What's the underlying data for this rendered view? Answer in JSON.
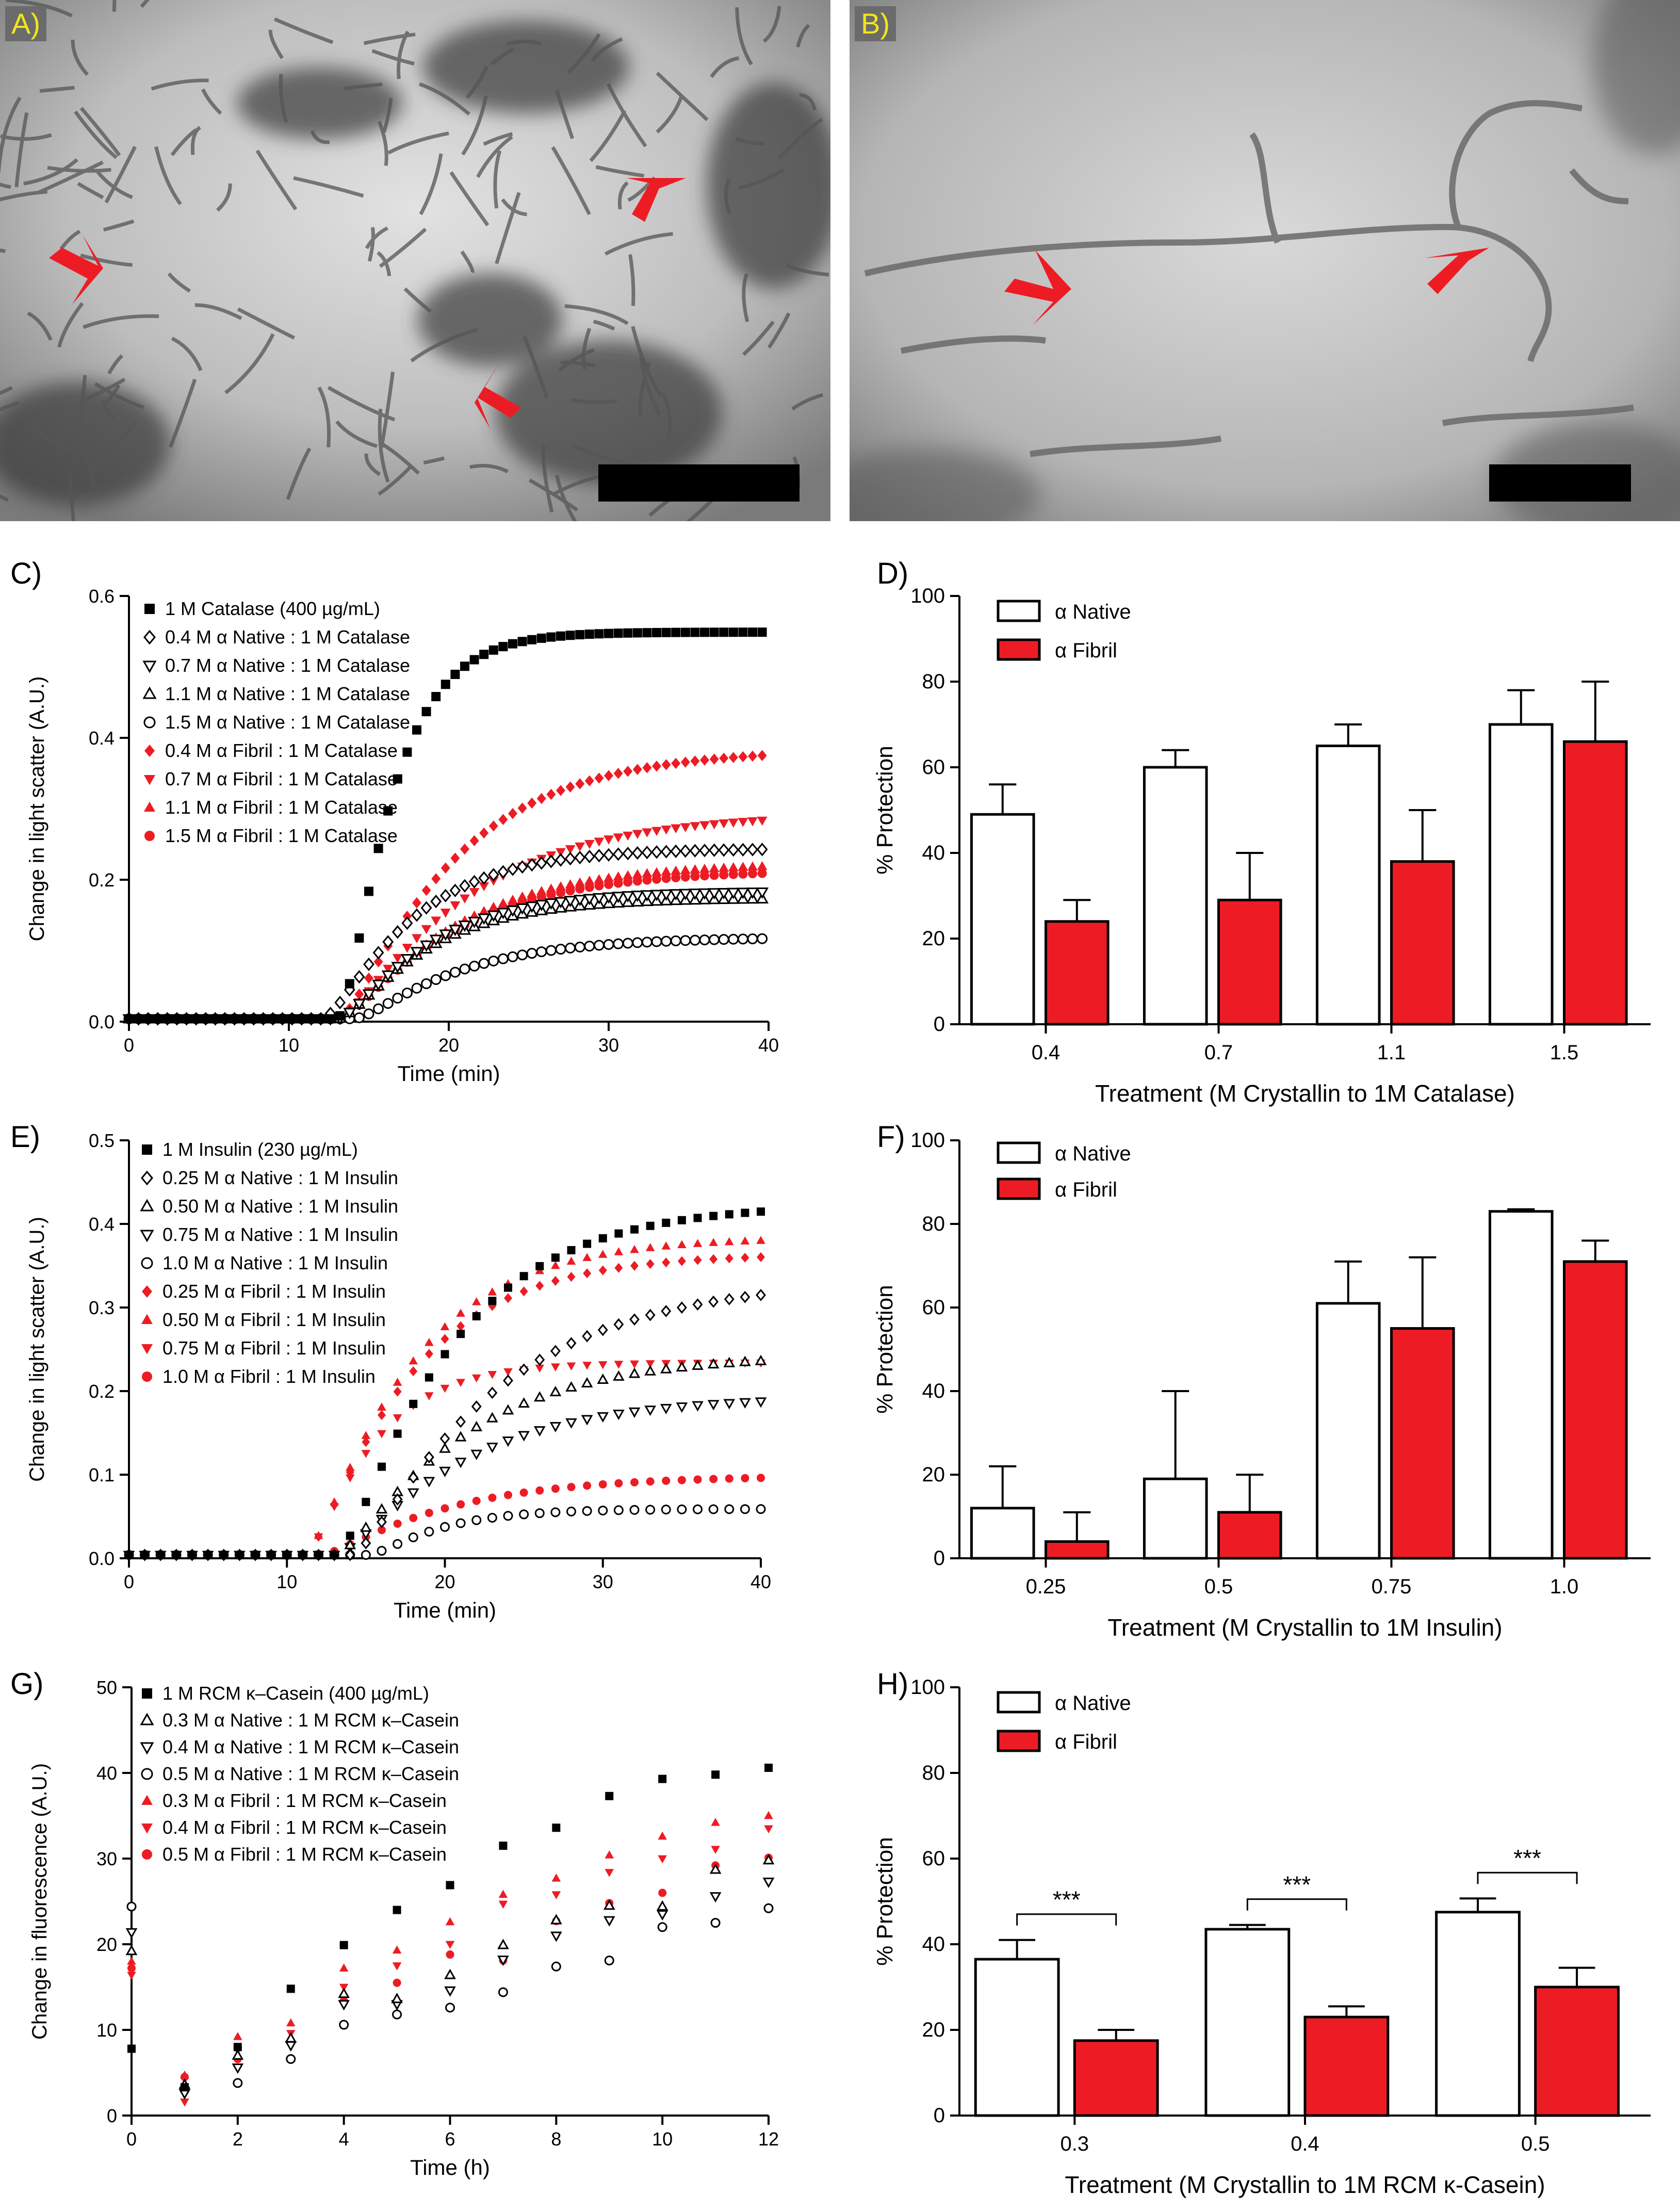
{
  "colors": {
    "red": "#ed1c24",
    "black": "#000000",
    "tem_background": "#c8c8c8"
  },
  "micrographs": [
    {
      "tag": "A)",
      "description_icon": "tem-micrograph-icon",
      "arrow_color": "#ed1c24"
    },
    {
      "tag": "B)",
      "description_icon": "tem-micrograph-icon",
      "arrow_color": "#ed1c24"
    }
  ],
  "chart_data": [
    {
      "id": "C",
      "letter": "C)",
      "type": "scatter",
      "xlabel": "Time (min)",
      "ylabel": "Change in light scatter (A.U.)",
      "xlim": [
        0,
        40
      ],
      "ylim": [
        0,
        0.6
      ],
      "xticks": [
        "0",
        "10",
        "20",
        "30",
        "40"
      ],
      "yticks": [
        "0.0",
        "0.2",
        "0.4",
        "0.6"
      ],
      "legend_position": "top-left",
      "series": [
        {
          "name": "1 M Catalase (400 µg/mL)",
          "marker": "square",
          "color": "#000000",
          "fill": true,
          "onset": 13,
          "plateau": 0.545,
          "rate": 0.22
        },
        {
          "name": "0.4 M α Native : 1 M Catalase",
          "marker": "diamond",
          "color": "#000000",
          "fill": false,
          "onset": 12,
          "plateau": 0.24,
          "rate": 0.12
        },
        {
          "name": "0.7 M α Native : 1 M Catalase",
          "marker": "triangle-down",
          "color": "#000000",
          "fill": false,
          "onset": 13,
          "plateau": 0.18,
          "rate": 0.12
        },
        {
          "name": "1.1 M α Native : 1 M Catalase",
          "marker": "triangle-up",
          "color": "#000000",
          "fill": false,
          "onset": 13,
          "plateau": 0.17,
          "rate": 0.12
        },
        {
          "name": "1.5 M α Native : 1 M Catalase",
          "marker": "circle",
          "color": "#000000",
          "fill": false,
          "onset": 14,
          "plateau": 0.115,
          "rate": 0.1
        },
        {
          "name": "0.4 M α Fibril : 1 M Catalase",
          "marker": "diamond",
          "color": "#ed1c24",
          "fill": true,
          "onset": 13,
          "plateau": 0.38,
          "rate": 0.09
        },
        {
          "name": "0.7 M α Fibril : 1 M Catalase",
          "marker": "triangle-down",
          "color": "#ed1c24",
          "fill": true,
          "onset": 13,
          "plateau": 0.29,
          "rate": 0.08
        },
        {
          "name": "1.1 M α Fibril : 1 M Catalase",
          "marker": "triangle-up",
          "color": "#ed1c24",
          "fill": true,
          "onset": 13,
          "plateau": 0.22,
          "rate": 0.09
        },
        {
          "name": "1.5 M α Fibril : 1 M Catalase",
          "marker": "circle",
          "color": "#ed1c24",
          "fill": true,
          "onset": 13,
          "plateau": 0.21,
          "rate": 0.09
        }
      ]
    },
    {
      "id": "D",
      "letter": "D)",
      "type": "bar",
      "xlabel": "Treatment (M Crystallin to 1M Catalase)",
      "ylabel": "% Protection",
      "ylim": [
        0,
        100
      ],
      "yticks": [
        "0",
        "20",
        "40",
        "60",
        "80",
        "100"
      ],
      "categories": [
        "0.4",
        "0.7",
        "1.1",
        "1.5"
      ],
      "legend_position": "top-left",
      "series": [
        {
          "name": "α Native",
          "color": "#ffffff",
          "values": [
            49,
            60,
            65,
            70
          ],
          "errors": [
            7,
            4,
            5,
            8
          ]
        },
        {
          "name": "α Fibril",
          "color": "#ed1c24",
          "values": [
            24,
            29,
            38,
            66
          ],
          "errors": [
            5,
            11,
            12,
            14
          ]
        }
      ],
      "significance": []
    },
    {
      "id": "E",
      "letter": "E)",
      "type": "scatter",
      "xlabel": "Time (min)",
      "ylabel": "Change in light scatter (A.U.)",
      "xlim": [
        0,
        40
      ],
      "ylim": [
        0,
        0.5
      ],
      "xticks": [
        "0",
        "10",
        "20",
        "30",
        "40"
      ],
      "yticks": [
        "0.0",
        "0.1",
        "0.2",
        "0.3",
        "0.4",
        "0.5"
      ],
      "legend_position": "top-left",
      "series": [
        {
          "name": "1 M Insulin (230 µg/mL)",
          "marker": "square",
          "color": "#000000",
          "fill": true,
          "onset": 13,
          "plateau": 0.42,
          "rate": 0.09
        },
        {
          "name": "0.25 M α Native : 1 M Insulin",
          "marker": "diamond",
          "color": "#000000",
          "fill": false,
          "onset": 14,
          "plateau": 0.33,
          "rate": 0.07
        },
        {
          "name": "0.50 M α Native : 1 M Insulin",
          "marker": "triangle-up",
          "color": "#000000",
          "fill": false,
          "onset": 13,
          "plateau": 0.24,
          "rate": 0.08
        },
        {
          "name": "0.75 M α Native : 1 M Insulin",
          "marker": "triangle-down",
          "color": "#000000",
          "fill": false,
          "onset": 13,
          "plateau": 0.19,
          "rate": 0.08
        },
        {
          "name": "1.0  M α Native : 1 M Insulin",
          "marker": "circle",
          "color": "#000000",
          "fill": false,
          "onset": 15,
          "plateau": 0.055,
          "rate": 0.15
        },
        {
          "name": "0.25 M α Fibril : 1 M Insulin",
          "marker": "diamond",
          "color": "#ed1c24",
          "fill": true,
          "onset": 11,
          "plateau": 0.36,
          "rate": 0.1
        },
        {
          "name": "0.50 M α Fibril : 1 M Insulin",
          "marker": "triangle-up",
          "color": "#ed1c24",
          "fill": true,
          "onset": 11,
          "plateau": 0.38,
          "rate": 0.1
        },
        {
          "name": "0.75 M α Fibril : 1 M Insulin",
          "marker": "triangle-down",
          "color": "#ed1c24",
          "fill": true,
          "onset": 11,
          "plateau": 0.23,
          "rate": 0.16
        },
        {
          "name": "1.0  M α Fibril : 1 M Insulin",
          "marker": "circle",
          "color": "#ed1c24",
          "fill": true,
          "onset": 12,
          "plateau": 0.095,
          "rate": 0.08
        }
      ]
    },
    {
      "id": "F",
      "letter": "F)",
      "type": "bar",
      "xlabel": "Treatment (M Crystallin to 1M Insulin)",
      "ylabel": "% Protection",
      "ylim": [
        0,
        100
      ],
      "yticks": [
        "0",
        "20",
        "40",
        "60",
        "80",
        "100"
      ],
      "categories": [
        "0.25",
        "0.5",
        "0.75",
        "1.0"
      ],
      "legend_position": "top-left",
      "series": [
        {
          "name": "α Native",
          "color": "#ffffff",
          "values": [
            12,
            19,
            61,
            83
          ],
          "errors": [
            10,
            21,
            10,
            0.5
          ]
        },
        {
          "name": "α Fibril",
          "color": "#ed1c24",
          "values": [
            4,
            11,
            55,
            71
          ],
          "errors": [
            7,
            9,
            17,
            5
          ]
        }
      ],
      "significance": []
    },
    {
      "id": "G",
      "letter": "G)",
      "type": "scatter",
      "xlabel": "Time (h)",
      "ylabel": "Change in fluorescence (A.U.)",
      "xlim": [
        0,
        12
      ],
      "ylim": [
        0,
        50
      ],
      "xticks": [
        "0",
        "2",
        "4",
        "6",
        "8",
        "10",
        "12"
      ],
      "yticks": [
        "0",
        "10",
        "20",
        "30",
        "40",
        "50"
      ],
      "legend_position": "top-left",
      "series": [
        {
          "name": "1 M RCM κ–Casein (400 µg/mL)",
          "marker": "square",
          "color": "#000000",
          "fill": true,
          "points": [
            [
              0,
              7.8
            ],
            [
              1,
              3.3
            ],
            [
              2,
              8.0
            ],
            [
              3,
              14.8
            ],
            [
              4,
              19.9
            ],
            [
              5,
              24.0
            ],
            [
              6,
              26.9
            ],
            [
              7,
              31.5
            ],
            [
              8,
              33.6
            ],
            [
              9,
              37.3
            ],
            [
              10,
              39.3
            ],
            [
              11,
              39.8
            ],
            [
              12,
              40.6
            ]
          ]
        },
        {
          "name": "0.3 M α Native : 1 M RCM κ–Casein",
          "marker": "triangle-up",
          "color": "#000000",
          "fill": false,
          "points": [
            [
              0,
              19.2
            ],
            [
              1,
              3.6
            ],
            [
              2,
              7.0
            ],
            [
              3,
              9.0
            ],
            [
              4,
              14.2
            ],
            [
              5,
              13.6
            ],
            [
              6,
              16.4
            ],
            [
              7,
              19.9
            ],
            [
              8,
              22.8
            ],
            [
              9,
              24.5
            ],
            [
              10,
              24.4
            ],
            [
              11,
              28.7
            ],
            [
              12,
              29.8
            ]
          ]
        },
        {
          "name": "0.4 M α Native : 1 M RCM κ–Casein",
          "marker": "triangle-down",
          "color": "#000000",
          "fill": false,
          "points": [
            [
              0,
              21.4
            ],
            [
              1,
              2.6
            ],
            [
              2,
              5.6
            ],
            [
              3,
              8.2
            ],
            [
              4,
              13.0
            ],
            [
              5,
              13.0
            ],
            [
              6,
              14.6
            ],
            [
              7,
              18.2
            ],
            [
              8,
              21.0
            ],
            [
              9,
              22.8
            ],
            [
              10,
              23.5
            ],
            [
              11,
              25.6
            ],
            [
              12,
              27.3
            ]
          ]
        },
        {
          "name": "0.5 M α Native : 1 M RCM κ–Casein",
          "marker": "circle",
          "color": "#000000",
          "fill": false,
          "points": [
            [
              0,
              24.4
            ],
            [
              1,
              3.0
            ],
            [
              2,
              3.8
            ],
            [
              3,
              6.6
            ],
            [
              4,
              10.6
            ],
            [
              5,
              11.8
            ],
            [
              6,
              12.6
            ],
            [
              7,
              14.4
            ],
            [
              8,
              17.4
            ],
            [
              9,
              18.1
            ],
            [
              10,
              22.0
            ],
            [
              11,
              22.5
            ],
            [
              12,
              24.2
            ]
          ]
        },
        {
          "name": "0.3 M α Fibril : 1 M RCM κ–Casein",
          "marker": "triangle-up",
          "color": "#ed1c24",
          "fill": true,
          "points": [
            [
              0,
              18.0
            ],
            [
              1,
              4.7
            ],
            [
              2,
              9.2
            ],
            [
              3,
              10.8
            ],
            [
              4,
              17.2
            ],
            [
              5,
              19.3
            ],
            [
              6,
              22.6
            ],
            [
              7,
              25.8
            ],
            [
              8,
              27.7
            ],
            [
              9,
              30.4
            ],
            [
              10,
              32.6
            ],
            [
              11,
              34.2
            ],
            [
              12,
              35.0
            ]
          ]
        },
        {
          "name": "0.4 M α Fibril : 1 M RCM κ–Casein",
          "marker": "triangle-down",
          "color": "#ed1c24",
          "fill": true,
          "points": [
            [
              0,
              16.4
            ],
            [
              1,
              1.6
            ],
            [
              2,
              7.6
            ],
            [
              3,
              9.6
            ],
            [
              4,
              15.0
            ],
            [
              5,
              17.5
            ],
            [
              6,
              20.0
            ],
            [
              7,
              24.7
            ],
            [
              8,
              25.8
            ],
            [
              9,
              28.4
            ],
            [
              10,
              30.0
            ],
            [
              11,
              31.1
            ],
            [
              12,
              33.5
            ]
          ]
        },
        {
          "name": "0.5 M α Fibril : 1 M RCM κ–Casein",
          "marker": "circle",
          "color": "#ed1c24",
          "fill": true,
          "points": [
            [
              0,
              17.2
            ],
            [
              1,
              4.5
            ],
            [
              2,
              6.6
            ],
            [
              3,
              8.6
            ],
            [
              4,
              13.4
            ],
            [
              5,
              15.5
            ],
            [
              6,
              18.8
            ],
            [
              7,
              18.1
            ],
            [
              8,
              22.7
            ],
            [
              9,
              24.8
            ],
            [
              10,
              26.0
            ],
            [
              11,
              29.2
            ],
            [
              12,
              30.1
            ]
          ]
        }
      ]
    },
    {
      "id": "H",
      "letter": "H)",
      "type": "bar",
      "xlabel": "Treatment (M Crystallin to 1M RCM κ-Casein)",
      "ylabel": "% Protection",
      "ylim": [
        0,
        100
      ],
      "yticks": [
        "0",
        "20",
        "40",
        "60",
        "80",
        "100"
      ],
      "categories": [
        "0.3",
        "0.4",
        "0.5"
      ],
      "legend_position": "top-left",
      "series": [
        {
          "name": "α Native",
          "color": "#ffffff",
          "values": [
            36.5,
            43.5,
            47.5
          ],
          "errors": [
            4.5,
            1,
            3.2
          ]
        },
        {
          "name": "α Fibril",
          "color": "#ed1c24",
          "values": [
            17.5,
            23,
            30
          ],
          "errors": [
            2.5,
            2.5,
            4.5
          ]
        }
      ],
      "significance": [
        "***",
        "***",
        "***"
      ]
    }
  ]
}
